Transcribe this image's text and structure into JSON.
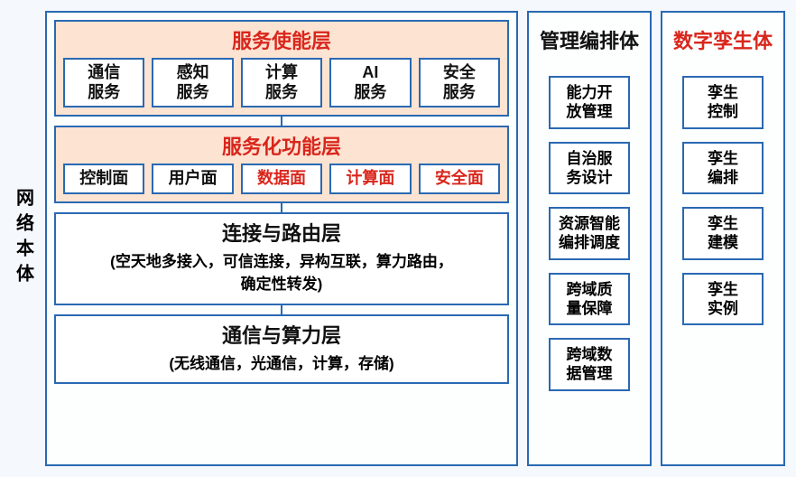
{
  "colors": {
    "border_main": "#2a69b3",
    "border_side1": "#2a69b3",
    "border_side2": "#2a69b3",
    "red": "#d9261c",
    "black": "#111111",
    "peach": "#fde3d2",
    "white": "#ffffff",
    "connector": "#2a69b3"
  },
  "vertical_label": "网络本体",
  "main": {
    "layers": [
      {
        "title": "服务使能层",
        "title_color": "red",
        "bg": "peach",
        "boxes": [
          {
            "text": "通信\n服务",
            "color": "black"
          },
          {
            "text": "感知\n服务",
            "color": "black"
          },
          {
            "text": "计算\n服务",
            "color": "black"
          },
          {
            "text": "AI\n服务",
            "color": "black"
          },
          {
            "text": "安全\n服务",
            "color": "black"
          }
        ]
      },
      {
        "title": "服务化功能层",
        "title_color": "red",
        "bg": "peach",
        "boxes": [
          {
            "text": "控制面",
            "color": "black"
          },
          {
            "text": "用户面",
            "color": "black"
          },
          {
            "text": "数据面",
            "color": "red"
          },
          {
            "text": "计算面",
            "color": "red"
          },
          {
            "text": "安全面",
            "color": "red"
          }
        ]
      },
      {
        "title": "连接与路由层",
        "title_color": "black",
        "bg": "white",
        "sub": "(空天地多接入，可信连接，异构互联，算力路由，\n确定性转发)"
      },
      {
        "title": "通信与算力层",
        "title_color": "black",
        "bg": "white",
        "sub": "(无线通信，光通信，计算，存储)"
      }
    ]
  },
  "side1": {
    "title": "管理编排体",
    "title_color": "black",
    "items": [
      "能力开\n放管理",
      "自治服\n务设计",
      "资源智能\n编排调度",
      "跨域质\n量保障",
      "跨域数\n据管理"
    ]
  },
  "side2": {
    "title": "数字孪生体",
    "title_color": "red",
    "items": [
      "孪生\n控制",
      "孪生\n编排",
      "孪生\n建模",
      "孪生\n实例"
    ]
  }
}
